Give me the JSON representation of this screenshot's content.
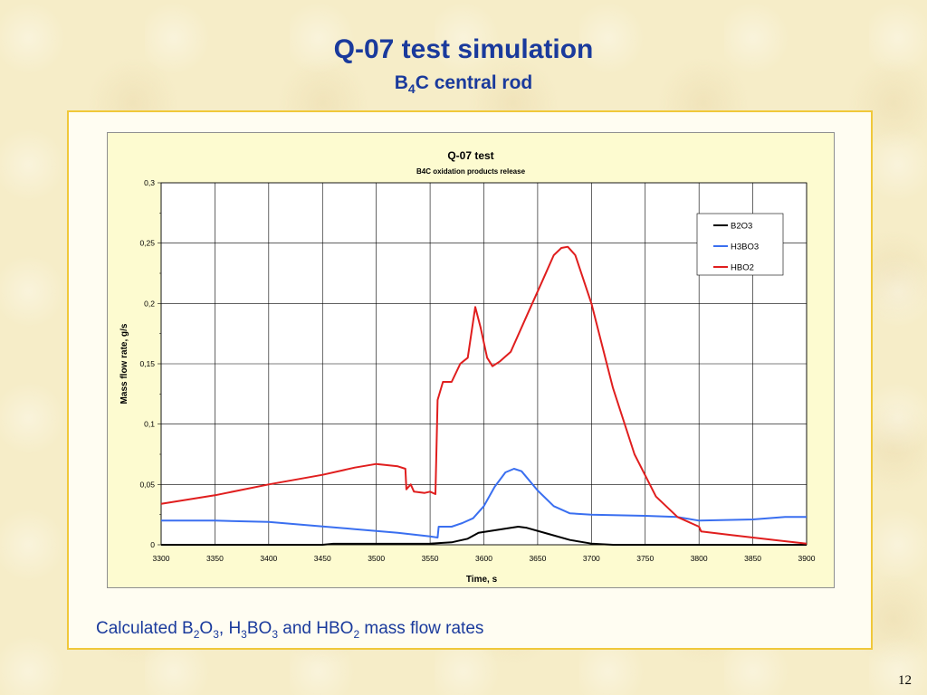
{
  "slide": {
    "title": "Q-07 test simulation",
    "subtitle_prefix": "B",
    "subtitle_sub": "4",
    "subtitle_suffix": "C central rod",
    "caption_parts": [
      "Calculated B",
      "2",
      "O",
      "3",
      ", H",
      "3",
      "BO",
      "3",
      " and HBO",
      "2",
      " mass flow rates"
    ],
    "page_number": "12"
  },
  "colors": {
    "slide_title": "#1a3a9c",
    "frame_border": "#f0c83a",
    "chart_bg": "#fdfbd0",
    "B2O3": "#000000",
    "H3BO3": "#3a6ff0",
    "HBO2": "#e01e1e"
  },
  "chart_data": {
    "type": "line",
    "title": "Q-07 test",
    "subtitle": "B4C oxidation products release",
    "xlabel": "Time, s",
    "ylabel": "Mass flow rate, g/s",
    "xlim": [
      3300,
      3900
    ],
    "ylim": [
      0,
      0.3
    ],
    "x_ticks": [
      "3300",
      "3350",
      "3400",
      "3450",
      "3500",
      "3550",
      "3600",
      "3650",
      "3700",
      "3750",
      "3800",
      "3850",
      "3900"
    ],
    "y_ticks": [
      "0",
      "0,05",
      "0,1",
      "0,15",
      "0,2",
      "0,25",
      "0,3"
    ],
    "grid": true,
    "legend_position": "top-right",
    "series": [
      {
        "name": "B2O3",
        "points": [
          [
            3300,
            0
          ],
          [
            3450,
            0
          ],
          [
            3460,
            0.0008
          ],
          [
            3550,
            0.001
          ],
          [
            3570,
            0.002
          ],
          [
            3585,
            0.005
          ],
          [
            3595,
            0.01
          ],
          [
            3610,
            0.012
          ],
          [
            3625,
            0.014
          ],
          [
            3632,
            0.015
          ],
          [
            3640,
            0.014
          ],
          [
            3660,
            0.009
          ],
          [
            3680,
            0.004
          ],
          [
            3700,
            0.001
          ],
          [
            3720,
            0
          ],
          [
            3900,
            0
          ]
        ]
      },
      {
        "name": "H3BO3",
        "points": [
          [
            3300,
            0.02
          ],
          [
            3350,
            0.02
          ],
          [
            3400,
            0.019
          ],
          [
            3440,
            0.016
          ],
          [
            3480,
            0.013
          ],
          [
            3520,
            0.01
          ],
          [
            3550,
            0.007
          ],
          [
            3557,
            0.006
          ],
          [
            3558,
            0.015
          ],
          [
            3570,
            0.015
          ],
          [
            3580,
            0.018
          ],
          [
            3590,
            0.022
          ],
          [
            3600,
            0.032
          ],
          [
            3610,
            0.048
          ],
          [
            3620,
            0.06
          ],
          [
            3628,
            0.063
          ],
          [
            3635,
            0.061
          ],
          [
            3650,
            0.045
          ],
          [
            3665,
            0.032
          ],
          [
            3680,
            0.026
          ],
          [
            3700,
            0.025
          ],
          [
            3750,
            0.024
          ],
          [
            3780,
            0.023
          ],
          [
            3800,
            0.02
          ],
          [
            3850,
            0.021
          ],
          [
            3880,
            0.023
          ],
          [
            3900,
            0.023
          ]
        ]
      },
      {
        "name": "HBO2",
        "points": [
          [
            3300,
            0.034
          ],
          [
            3350,
            0.041
          ],
          [
            3400,
            0.05
          ],
          [
            3450,
            0.058
          ],
          [
            3480,
            0.064
          ],
          [
            3500,
            0.067
          ],
          [
            3520,
            0.065
          ],
          [
            3527,
            0.063
          ],
          [
            3528,
            0.046
          ],
          [
            3532,
            0.05
          ],
          [
            3535,
            0.044
          ],
          [
            3545,
            0.043
          ],
          [
            3550,
            0.044
          ],
          [
            3555,
            0.042
          ],
          [
            3557,
            0.12
          ],
          [
            3562,
            0.135
          ],
          [
            3570,
            0.135
          ],
          [
            3578,
            0.15
          ],
          [
            3585,
            0.155
          ],
          [
            3590,
            0.185
          ],
          [
            3592,
            0.197
          ],
          [
            3597,
            0.18
          ],
          [
            3603,
            0.155
          ],
          [
            3608,
            0.148
          ],
          [
            3615,
            0.152
          ],
          [
            3625,
            0.16
          ],
          [
            3640,
            0.19
          ],
          [
            3655,
            0.22
          ],
          [
            3665,
            0.24
          ],
          [
            3672,
            0.246
          ],
          [
            3678,
            0.247
          ],
          [
            3685,
            0.24
          ],
          [
            3700,
            0.2
          ],
          [
            3720,
            0.13
          ],
          [
            3740,
            0.075
          ],
          [
            3760,
            0.04
          ],
          [
            3780,
            0.023
          ],
          [
            3800,
            0.015
          ],
          [
            3802,
            0.011
          ],
          [
            3830,
            0.008
          ],
          [
            3870,
            0.004
          ],
          [
            3900,
            0.001
          ]
        ]
      }
    ]
  }
}
